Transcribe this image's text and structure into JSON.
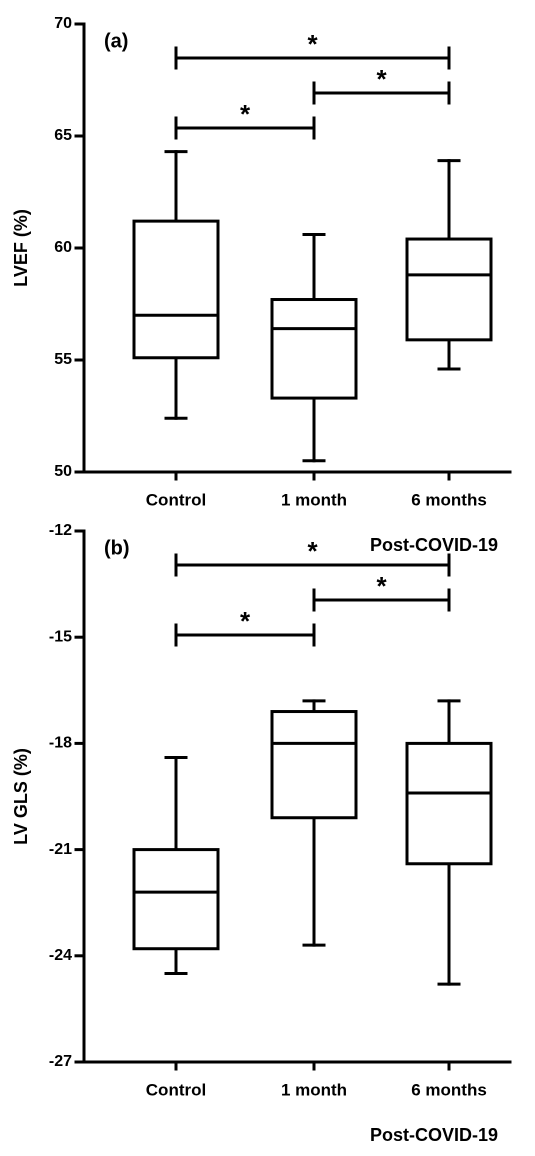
{
  "chart_data": [
    {
      "type": "box",
      "panel_label": "(a)",
      "y_label": "LVEF (%)",
      "x_label": "Post-COVID-19",
      "categories": [
        "Control",
        "1 month",
        "6 months"
      ],
      "boxes": [
        {
          "min": 52.4,
          "q1": 55.1,
          "median": 57.0,
          "q3": 61.2,
          "max": 64.3
        },
        {
          "min": 50.5,
          "q1": 53.3,
          "median": 56.4,
          "q3": 57.7,
          "max": 60.6
        },
        {
          "min": 54.6,
          "q1": 55.9,
          "median": 58.8,
          "q3": 60.4,
          "max": 63.9
        }
      ],
      "ylim": [
        50,
        70
      ],
      "yticks": [
        50,
        55,
        60,
        65,
        70
      ],
      "annotations": [
        {
          "text": "*",
          "between": [
            "Control",
            "6 months"
          ]
        },
        {
          "text": "*",
          "between": [
            "1 month",
            "6 months"
          ]
        },
        {
          "text": "*",
          "between": [
            "Control",
            "1 month"
          ]
        }
      ]
    },
    {
      "type": "box",
      "panel_label": "(b)",
      "y_label": "LV GLS (%)",
      "x_label": "Post-COVID-19",
      "categories": [
        "Control",
        "1 month",
        "6 months"
      ],
      "boxes": [
        {
          "min": -24.5,
          "q1": -23.8,
          "median": -22.2,
          "q3": -21.0,
          "max": -18.4
        },
        {
          "min": -23.7,
          "q1": -20.1,
          "median": -18.0,
          "q3": -17.1,
          "max": -16.8
        },
        {
          "min": -24.8,
          "q1": -21.4,
          "median": -19.4,
          "q3": -18.0,
          "max": -16.8
        }
      ],
      "ylim": [
        -27,
        -12
      ],
      "yticks": [
        -27,
        -24,
        -21,
        -18,
        -15,
        -12
      ],
      "annotations": [
        {
          "text": "*",
          "between": [
            "Control",
            "6 months"
          ]
        },
        {
          "text": "*",
          "between": [
            "1 month",
            "6 months"
          ]
        },
        {
          "text": "*",
          "between": [
            "Control",
            "1 month"
          ]
        }
      ]
    }
  ]
}
